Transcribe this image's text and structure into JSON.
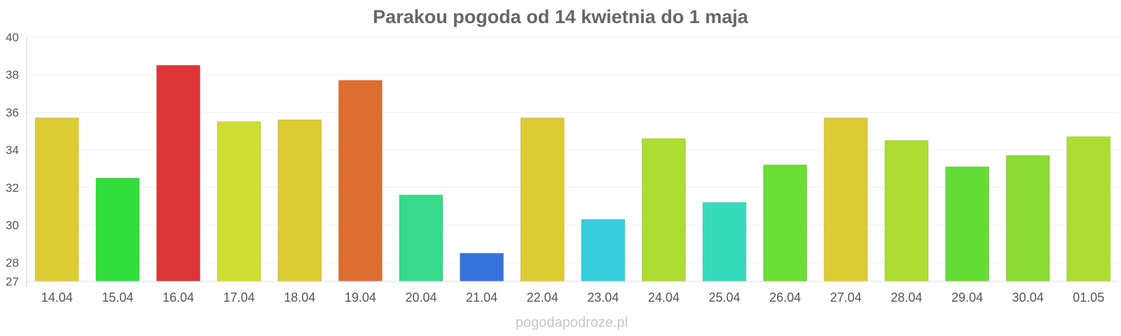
{
  "chart_data": {
    "type": "bar",
    "title": "Parakou pogoda od 14 kwietnia do 1 maja",
    "categories": [
      "14.04",
      "15.04",
      "16.04",
      "17.04",
      "18.04",
      "19.04",
      "20.04",
      "21.04",
      "22.04",
      "23.04",
      "24.04",
      "25.04",
      "26.04",
      "27.04",
      "28.04",
      "29.04",
      "30.04",
      "01.05"
    ],
    "values": [
      35.7,
      32.5,
      38.5,
      35.5,
      35.6,
      37.7,
      31.6,
      28.5,
      35.7,
      30.3,
      34.6,
      31.2,
      33.2,
      35.7,
      34.5,
      33.1,
      33.7,
      34.7
    ],
    "colors": [
      "#dccb32",
      "#32de3c",
      "#dc3636",
      "#d0dd32",
      "#dccb32",
      "#dc6e32",
      "#36db8a",
      "#3473dc",
      "#dccb32",
      "#36cedc",
      "#aedc32",
      "#36dbbe",
      "#6cdc36",
      "#dccb32",
      "#aedc32",
      "#64dc36",
      "#8cdc36",
      "#aedc32"
    ],
    "ylim": [
      27,
      40
    ],
    "yticks": [
      27,
      28,
      30,
      32,
      34,
      36,
      38,
      40
    ],
    "xlabel": "",
    "ylabel": "",
    "grid": true,
    "legend": "none"
  },
  "watermark": "pogodapodroze.pl"
}
